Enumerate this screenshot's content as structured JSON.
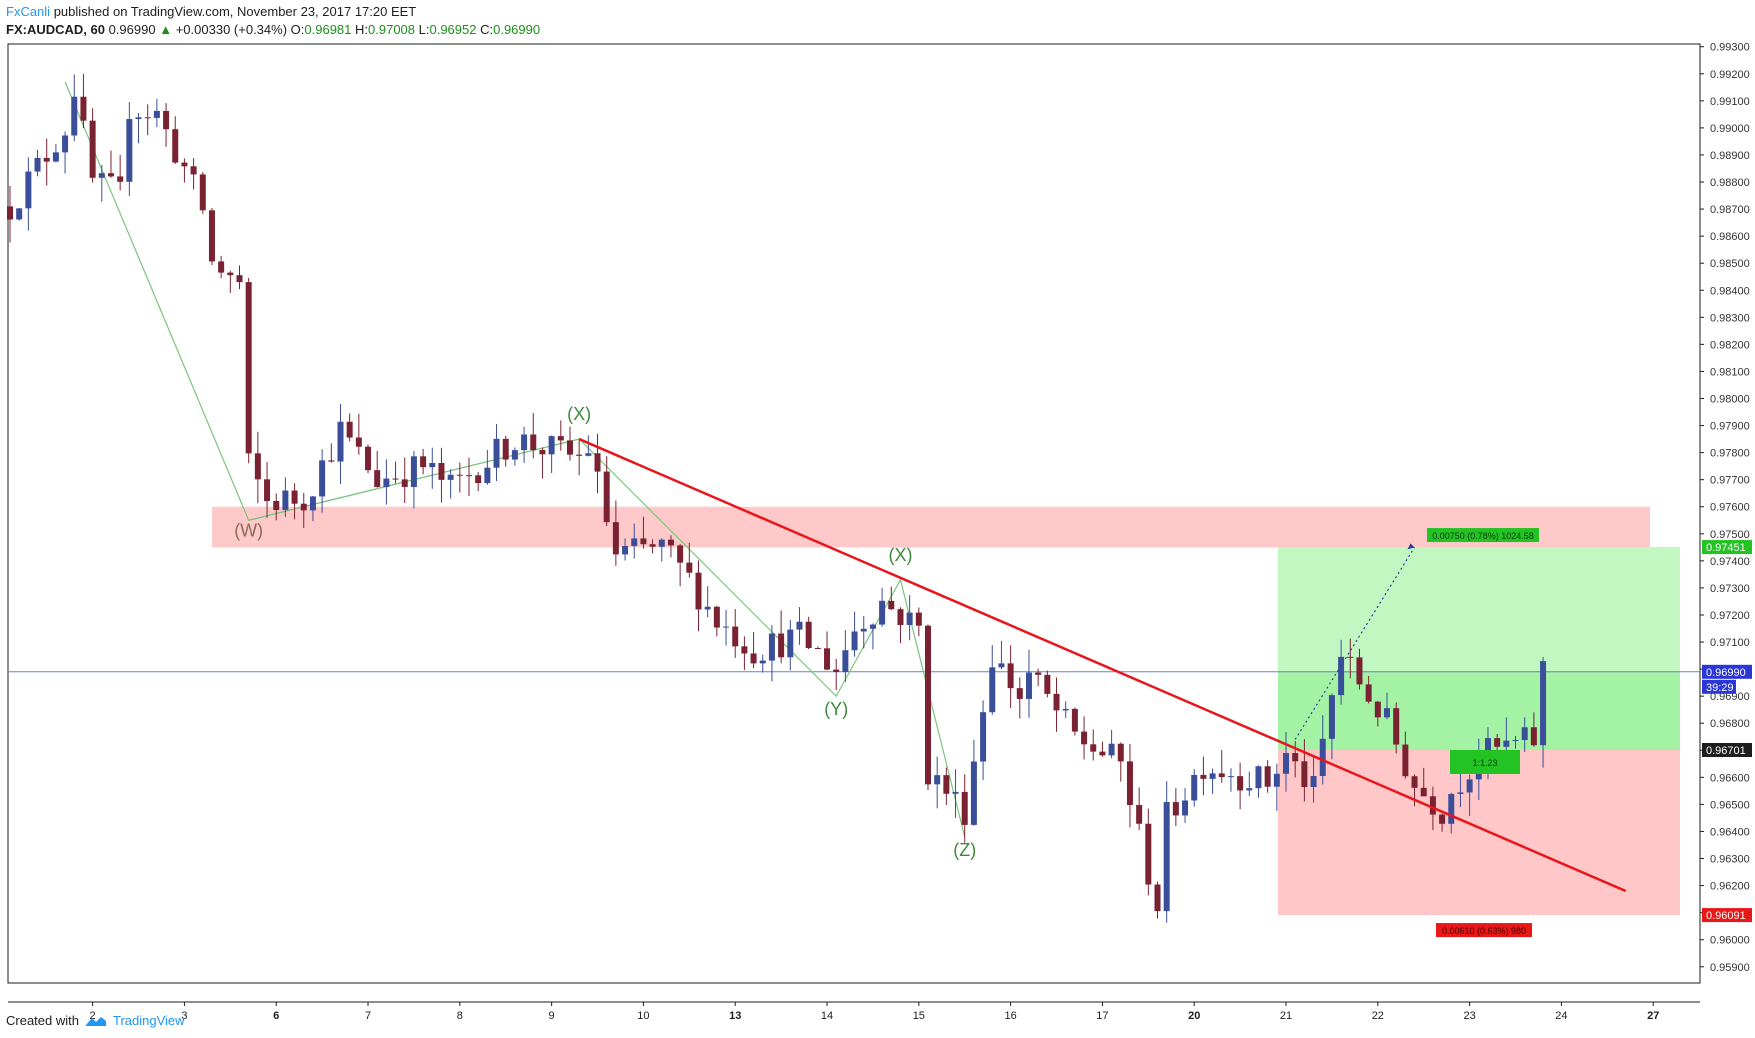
{
  "header": {
    "author": "FxCanli",
    "published": "published on TradingView.com, November 23, 2017 17:20 EET",
    "symbol": "FX:AUDCAD, 60",
    "last": "0.96990",
    "change": "+0.00330 (+0.34%)",
    "o_label": "O:",
    "o_value": "0.96981",
    "h_label": "H:",
    "h_value": "0.97008",
    "l_label": "L:",
    "l_value": "0.96952",
    "c_label": "C:",
    "c_value": "0.96990"
  },
  "footer": {
    "created_with": "Created with",
    "brand": "TradingView"
  },
  "colors": {
    "bull": "#3a4e9a",
    "bear": "#7a2232",
    "wave": "#7cc47c",
    "trend": "#e8151b",
    "zone": "#ffc9c9",
    "target": "#c2f7c2",
    "stop": "#ffc7c7",
    "price_line": "#6e7bd6"
  },
  "chart_data": {
    "type": "candlestick",
    "ylim": [
      0.9584,
      0.9931
    ],
    "y_ticks": [
      "0.95900",
      "0.96000",
      "0.96100",
      "0.96200",
      "0.96300",
      "0.96400",
      "0.96500",
      "0.96600",
      "0.96700",
      "0.96800",
      "0.96900",
      "0.97000",
      "0.97100",
      "0.97200",
      "0.97300",
      "0.97400",
      "0.97500",
      "0.97600",
      "0.97700",
      "0.97800",
      "0.97900",
      "0.98000",
      "0.98100",
      "0.98200",
      "0.98300",
      "0.98400",
      "0.98500",
      "0.98600",
      "0.98700",
      "0.98800",
      "0.98900",
      "0.99000",
      "0.99100",
      "0.99200",
      "0.99300"
    ],
    "x_ticks": [
      {
        "label": "2",
        "bold": false
      },
      {
        "label": "3",
        "bold": false
      },
      {
        "label": "6",
        "bold": true
      },
      {
        "label": "7",
        "bold": false
      },
      {
        "label": "8",
        "bold": false
      },
      {
        "label": "9",
        "bold": false
      },
      {
        "label": "10",
        "bold": false
      },
      {
        "label": "13",
        "bold": true
      },
      {
        "label": "14",
        "bold": false
      },
      {
        "label": "15",
        "bold": false
      },
      {
        "label": "16",
        "bold": false
      },
      {
        "label": "17",
        "bold": false
      },
      {
        "label": "20",
        "bold": true
      },
      {
        "label": "21",
        "bold": false
      },
      {
        "label": "22",
        "bold": false
      },
      {
        "label": "23",
        "bold": false
      },
      {
        "label": "24",
        "bold": false
      },
      {
        "label": "27",
        "bold": true
      }
    ],
    "x_tick_index": [
      9,
      19,
      29,
      39,
      49,
      59,
      69,
      79,
      89,
      99,
      109,
      119,
      129,
      139,
      149,
      159,
      169,
      179
    ],
    "n_bars": 185,
    "price_path": [
      [
        0,
        0.9871
      ],
      [
        6,
        0.99
      ],
      [
        7,
        0.9915
      ],
      [
        9,
        0.988
      ],
      [
        12,
        0.9875
      ],
      [
        13,
        0.9908
      ],
      [
        16,
        0.9905
      ],
      [
        19,
        0.9885
      ],
      [
        21,
        0.987
      ],
      [
        22,
        0.985
      ],
      [
        25,
        0.9842
      ],
      [
        26,
        0.9775
      ],
      [
        28,
        0.9762
      ],
      [
        32,
        0.9763
      ],
      [
        36,
        0.9788
      ],
      [
        40,
        0.977
      ],
      [
        45,
        0.9775
      ],
      [
        48,
        0.9767
      ],
      [
        55,
        0.9785
      ],
      [
        62,
        0.9778
      ],
      [
        63,
        0.9782
      ],
      [
        66,
        0.9742
      ],
      [
        71,
        0.9745
      ],
      [
        74,
        0.9733
      ],
      [
        77,
        0.9718
      ],
      [
        81,
        0.9707
      ],
      [
        86,
        0.9712
      ],
      [
        90,
        0.97
      ],
      [
        92,
        0.9715
      ],
      [
        95,
        0.9725
      ],
      [
        99,
        0.9715
      ],
      [
        100,
        0.9662
      ],
      [
        104,
        0.9648
      ],
      [
        107,
        0.9705
      ],
      [
        110,
        0.969
      ],
      [
        111,
        0.9698
      ],
      [
        116,
        0.9675
      ],
      [
        121,
        0.9665
      ],
      [
        124,
        0.9625
      ],
      [
        125,
        0.9613
      ],
      [
        126,
        0.9645
      ],
      [
        130,
        0.9665
      ],
      [
        137,
        0.9658
      ],
      [
        139,
        0.9668
      ],
      [
        142,
        0.9655
      ],
      [
        144,
        0.969
      ],
      [
        145,
        0.9705
      ],
      [
        150,
        0.968
      ],
      [
        153,
        0.9657
      ],
      [
        156,
        0.9648
      ],
      [
        157,
        0.9655
      ],
      [
        160,
        0.9668
      ],
      [
        166,
        0.9674
      ],
      [
        167,
        0.97
      ]
    ],
    "current_price": "0.96990",
    "countdown": "39:29",
    "entry_price": "0.96701",
    "target_price": "0.97451",
    "stop_price": "0.96091",
    "target_label": "0.00750 (0.78%) 1024.58",
    "stop_label": "0.00610 (0.63%) 980",
    "entry_label": "1:1.23",
    "resistance_zone": [
      0.9745,
      0.976
    ],
    "wave_path": [
      [
        6,
        0.9917
      ],
      [
        26,
        0.9755
      ],
      [
        62,
        0.9785
      ],
      [
        90,
        0.969
      ],
      [
        97,
        0.9733
      ],
      [
        104,
        0.9638
      ]
    ],
    "wave_path2": [
      [
        26,
        0.9755
      ],
      [
        62,
        0.9785
      ]
    ],
    "wave_labels": [
      {
        "text": "(W)",
        "i": 26,
        "p": 0.9749,
        "color": "#8b6b56"
      },
      {
        "text": "(X)",
        "i": 62,
        "p": 0.9792,
        "color": "#3b8a3b"
      },
      {
        "text": "(Y)",
        "i": 90,
        "p": 0.9683,
        "color": "#3b8a3b"
      },
      {
        "text": "(X)",
        "i": 97,
        "p": 0.974,
        "color": "#3b8a3b"
      },
      {
        "text": "(Z)",
        "i": 104,
        "p": 0.9631,
        "color": "#3b8a3b"
      }
    ],
    "trendline": [
      [
        62,
        0.9785
      ],
      [
        176,
        0.9618
      ]
    ],
    "projection": [
      [
        140,
        0.9674
      ],
      [
        153,
        0.9745
      ]
    ]
  }
}
